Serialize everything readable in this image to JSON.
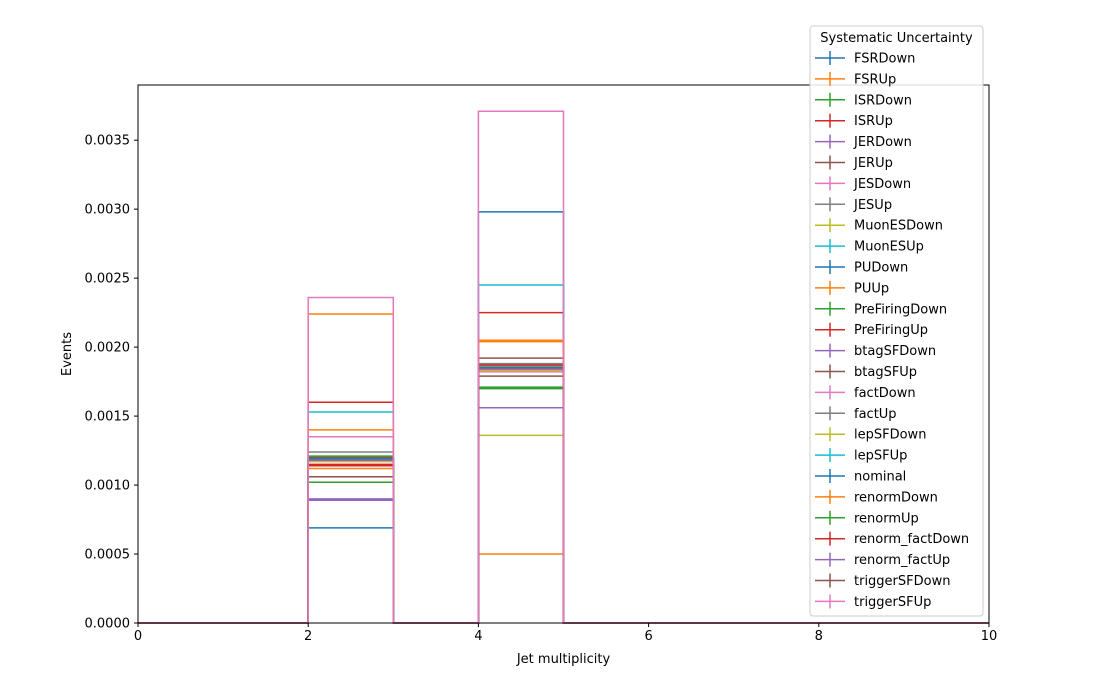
{
  "chart_data": {
    "type": "step",
    "title": "",
    "xlabel": "Jet multiplicity",
    "ylabel": "Events",
    "xlim": [
      0,
      10
    ],
    "ylim": [
      0,
      0.0039
    ],
    "bin_edges": [
      0,
      1,
      2,
      3,
      4,
      5,
      6,
      7,
      8,
      9,
      10
    ],
    "x_ticks": [
      0,
      2,
      4,
      6,
      8,
      10
    ],
    "x_tick_labels": [
      "0",
      "2",
      "4",
      "6",
      "8",
      "10"
    ],
    "y_ticks": [
      0,
      0.0005,
      0.001,
      0.0015,
      0.002,
      0.0025,
      0.003,
      0.0035
    ],
    "y_tick_labels": [
      "0.0000",
      "0.0005",
      "0.0010",
      "0.0015",
      "0.0020",
      "0.0025",
      "0.0030",
      "0.0035"
    ],
    "grid": false,
    "legend_title": "Systematic Uncertainty",
    "legend_position": "upper right (outside top)",
    "series": [
      {
        "name": "FSRDown",
        "color": "#1f77b4",
        "values": [
          0,
          0,
          0.00069,
          0,
          0.00298,
          0,
          0,
          0,
          0,
          0
        ]
      },
      {
        "name": "FSRUp",
        "color": "#ff7f0e",
        "values": [
          0,
          0,
          0.00224,
          0,
          0.0005,
          0,
          0,
          0,
          0,
          0
        ]
      },
      {
        "name": "ISRDown",
        "color": "#2ca02c",
        "values": [
          0,
          0,
          0.00102,
          0,
          0.0017,
          0,
          0,
          0,
          0,
          0
        ]
      },
      {
        "name": "ISRUp",
        "color": "#d62728",
        "values": [
          0,
          0,
          0.0016,
          0,
          0.00225,
          0,
          0,
          0,
          0,
          0
        ]
      },
      {
        "name": "JERDown",
        "color": "#9467bd",
        "values": [
          0,
          0,
          0.0009,
          0,
          0.00156,
          0,
          0,
          0,
          0,
          0
        ]
      },
      {
        "name": "JERUp",
        "color": "#8c564b",
        "values": [
          0,
          0,
          0.00106,
          0,
          0.00192,
          0,
          0,
          0,
          0,
          0
        ]
      },
      {
        "name": "JESDown",
        "color": "#e377c2",
        "values": [
          0,
          0,
          0.00135,
          0,
          0.00182,
          0,
          0,
          0,
          0,
          0
        ]
      },
      {
        "name": "JESUp",
        "color": "#7f7f7f",
        "values": [
          0,
          0,
          0.00124,
          0,
          0.00188,
          0,
          0,
          0,
          0,
          0
        ]
      },
      {
        "name": "MuonESDown",
        "color": "#bcbd22",
        "values": [
          0,
          0,
          0.00089,
          0,
          0.00136,
          0,
          0,
          0,
          0,
          0
        ]
      },
      {
        "name": "MuonESUp",
        "color": "#17becf",
        "values": [
          0,
          0,
          0.00153,
          0,
          0.00245,
          0,
          0,
          0,
          0,
          0
        ]
      },
      {
        "name": "PUDown",
        "color": "#1f77b4",
        "values": [
          0,
          0,
          0.00119,
          0,
          0.00185,
          0,
          0,
          0,
          0,
          0
        ]
      },
      {
        "name": "PUUp",
        "color": "#ff7f0e",
        "values": [
          0,
          0,
          0.0014,
          0,
          0.00204,
          0,
          0,
          0,
          0,
          0
        ]
      },
      {
        "name": "PreFiringDown",
        "color": "#2ca02c",
        "values": [
          0,
          0,
          0.00119,
          0,
          0.00171,
          0,
          0,
          0,
          0,
          0
        ]
      },
      {
        "name": "PreFiringUp",
        "color": "#d62728",
        "values": [
          0,
          0,
          0.00115,
          0,
          0.00186,
          0,
          0,
          0,
          0,
          0
        ]
      },
      {
        "name": "btagSFDown",
        "color": "#9467bd",
        "values": [
          0,
          0,
          0.00089,
          0,
          0.00184,
          0,
          0,
          0,
          0,
          0
        ]
      },
      {
        "name": "btagSFUp",
        "color": "#8c564b",
        "values": [
          0,
          0,
          0.00118,
          0,
          0.00179,
          0,
          0,
          0,
          0,
          0
        ]
      },
      {
        "name": "factDown",
        "color": "#e377c2",
        "values": [
          0,
          0,
          0.00119,
          0,
          0.00185,
          0,
          0,
          0,
          0,
          0
        ]
      },
      {
        "name": "factUp",
        "color": "#7f7f7f",
        "values": [
          0,
          0,
          0.00118,
          0,
          0.00186,
          0,
          0,
          0,
          0,
          0
        ]
      },
      {
        "name": "lepSFDown",
        "color": "#bcbd22",
        "values": [
          0,
          0,
          0.00117,
          0,
          0.00183,
          0,
          0,
          0,
          0,
          0
        ]
      },
      {
        "name": "lepSFUp",
        "color": "#17becf",
        "values": [
          0,
          0,
          0.0012,
          0,
          0.00186,
          0,
          0,
          0,
          0,
          0
        ]
      },
      {
        "name": "nominal",
        "color": "#1f77b4",
        "values": [
          0,
          0,
          0.00119,
          0,
          0.00185,
          0,
          0,
          0,
          0,
          0
        ]
      },
      {
        "name": "renormDown",
        "color": "#ff7f0e",
        "values": [
          0,
          0,
          0.00112,
          0,
          0.00205,
          0,
          0,
          0,
          0,
          0
        ]
      },
      {
        "name": "renormUp",
        "color": "#2ca02c",
        "values": [
          0,
          0,
          0.00121,
          0,
          0.0017,
          0,
          0,
          0,
          0,
          0
        ]
      },
      {
        "name": "renorm_factDown",
        "color": "#d62728",
        "values": [
          0,
          0,
          0.00114,
          0,
          0.00187,
          0,
          0,
          0,
          0,
          0
        ]
      },
      {
        "name": "renorm_factUp",
        "color": "#9467bd",
        "values": [
          0,
          0,
          0.00118,
          0,
          0.00184,
          0,
          0,
          0,
          0,
          0
        ]
      },
      {
        "name": "triggerSFDown",
        "color": "#8c564b",
        "values": [
          0,
          0,
          0.0012,
          0,
          0.00185,
          0,
          0,
          0,
          0,
          0
        ]
      },
      {
        "name": "triggerSFUp",
        "color": "#e377c2",
        "values": [
          0,
          0,
          0.00236,
          0,
          0.00371,
          0,
          0,
          0,
          0,
          0
        ]
      }
    ]
  }
}
